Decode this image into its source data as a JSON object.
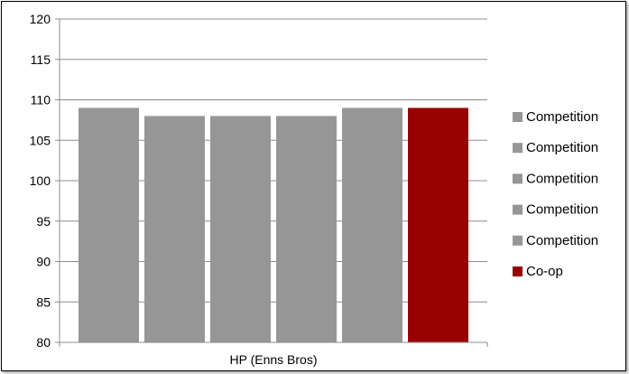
{
  "chart_data": {
    "type": "bar",
    "categories": [
      "HP (Enns Bros)"
    ],
    "series": [
      {
        "name": "Competition",
        "values": [
          109
        ],
        "color": "#969696"
      },
      {
        "name": "Competition",
        "values": [
          108
        ],
        "color": "#969696"
      },
      {
        "name": "Competition",
        "values": [
          108
        ],
        "color": "#969696"
      },
      {
        "name": "Competition",
        "values": [
          108
        ],
        "color": "#969696"
      },
      {
        "name": "Competition",
        "values": [
          109
        ],
        "color": "#969696"
      },
      {
        "name": "Co-op",
        "values": [
          109
        ],
        "color": "#990000"
      }
    ],
    "ylim": [
      80,
      120
    ],
    "yticks": [
      80,
      85,
      90,
      95,
      100,
      105,
      110,
      115,
      120
    ],
    "grid": true,
    "legend_position": "right",
    "title": "",
    "xlabel": "",
    "ylabel": ""
  }
}
